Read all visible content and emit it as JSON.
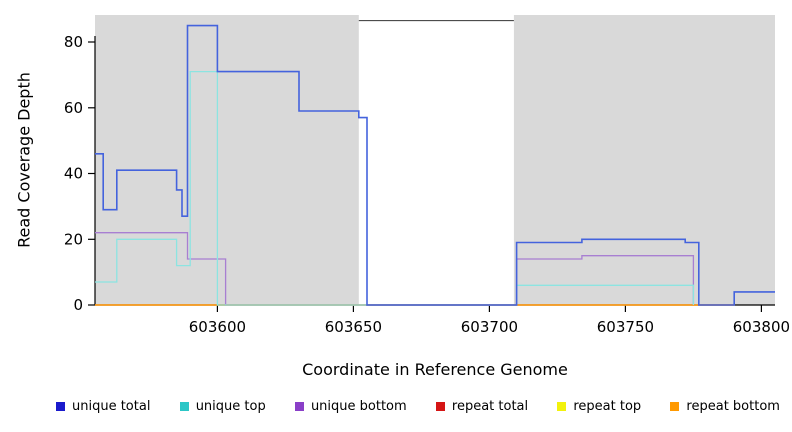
{
  "chart_data": {
    "type": "line",
    "subtype": "step-coverage-plot",
    "title": "",
    "xlabel": "Coordinate in Reference Genome",
    "ylabel": "Read Coverage Depth",
    "xlim": [
      603555,
      603805
    ],
    "ylim": [
      0,
      88
    ],
    "xticks": [
      603600,
      603650,
      603700,
      603750,
      603800
    ],
    "yticks": [
      0,
      20,
      40,
      60,
      80
    ],
    "grid": false,
    "legend_position": "bottom",
    "panel_color": "#d9d9d9",
    "gap_region_color": "#ffffff",
    "shaded_regions": [
      {
        "x0": 603555,
        "x1": 603652
      },
      {
        "x0": 603709,
        "x1": 603805
      }
    ],
    "gap_top_border": {
      "x0": 603652,
      "x1": 603709,
      "y": 86.5,
      "color": "#333333"
    },
    "series": [
      {
        "name": "repeat total",
        "color": "#d51515",
        "width": 1.2,
        "points": [
          [
            603555,
            0
          ],
          [
            603790,
            0
          ]
        ]
      },
      {
        "name": "repeat top",
        "color": "#f2f20c",
        "width": 1.2,
        "points": [
          [
            603555,
            0
          ],
          [
            603790,
            0
          ]
        ]
      },
      {
        "name": "repeat bottom",
        "color": "#ff9f1f",
        "width": 1.4,
        "points": [
          [
            603555,
            0
          ],
          [
            603790,
            0
          ]
        ]
      },
      {
        "name": "unique bottom",
        "color": "#a87fd2",
        "width": 1.3,
        "points": [
          [
            603555,
            22
          ],
          [
            603589,
            14
          ],
          [
            603603,
            0
          ],
          [
            603710,
            14
          ],
          [
            603734,
            15
          ],
          [
            603775,
            0
          ]
        ]
      },
      {
        "name": "unique top",
        "color": "#8ce4e1",
        "width": 1.3,
        "points": [
          [
            603555,
            7
          ],
          [
            603563,
            20
          ],
          [
            603585,
            12
          ],
          [
            603590,
            71
          ],
          [
            603600,
            0
          ],
          [
            603710,
            6
          ],
          [
            603775,
            0
          ]
        ]
      },
      {
        "name": "unique total",
        "color": "#4463dd",
        "width": 1.6,
        "points": [
          [
            603555,
            46
          ],
          [
            603558,
            29
          ],
          [
            603563,
            41
          ],
          [
            603585,
            35
          ],
          [
            603587,
            27
          ],
          [
            603589,
            85
          ],
          [
            603600,
            71
          ],
          [
            603630,
            59
          ],
          [
            603652,
            57
          ],
          [
            603655,
            0
          ],
          [
            603710,
            19
          ],
          [
            603734,
            20
          ],
          [
            603772,
            19
          ],
          [
            603777,
            0
          ],
          [
            603790,
            4
          ],
          [
            603805,
            4
          ]
        ]
      }
    ],
    "legend": [
      {
        "label": "unique total",
        "color": "#1a1acc"
      },
      {
        "label": "unique top",
        "color": "#2cc6c6"
      },
      {
        "label": "unique bottom",
        "color": "#8a3fc8"
      },
      {
        "label": "repeat total",
        "color": "#d51515"
      },
      {
        "label": "repeat top",
        "color": "#f2f20c"
      },
      {
        "label": "repeat bottom",
        "color": "#ff9900"
      }
    ]
  }
}
